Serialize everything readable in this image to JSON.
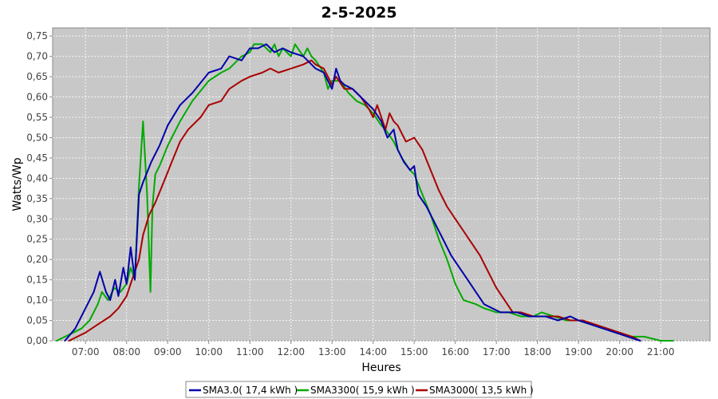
{
  "chart_data": {
    "type": "line",
    "title": "2-5-2025",
    "xlabel": "Heures",
    "ylabel": "Watts/Wp",
    "xlim": [
      6.2,
      22.2
    ],
    "ylim": [
      0,
      0.77
    ],
    "x_ticks": [
      {
        "x": 7,
        "label": "07:00"
      },
      {
        "x": 8,
        "label": "08:00"
      },
      {
        "x": 9,
        "label": "09:00"
      },
      {
        "x": 10,
        "label": "10:00"
      },
      {
        "x": 11,
        "label": "11:00"
      },
      {
        "x": 12,
        "label": "12:00"
      },
      {
        "x": 13,
        "label": "13:00"
      },
      {
        "x": 14,
        "label": "14:00"
      },
      {
        "x": 15,
        "label": "15:00"
      },
      {
        "x": 16,
        "label": "16:00"
      },
      {
        "x": 17,
        "label": "17:00"
      },
      {
        "x": 18,
        "label": "18:00"
      },
      {
        "x": 19,
        "label": "19:00"
      },
      {
        "x": 20,
        "label": "20:00"
      },
      {
        "x": 21,
        "label": "21:00"
      }
    ],
    "y_ticks": [
      {
        "y": 0.0,
        "label": "0,00"
      },
      {
        "y": 0.05,
        "label": "0,05"
      },
      {
        "y": 0.1,
        "label": "0,10"
      },
      {
        "y": 0.15,
        "label": "0,15"
      },
      {
        "y": 0.2,
        "label": "0,20"
      },
      {
        "y": 0.25,
        "label": "0,25"
      },
      {
        "y": 0.3,
        "label": "0,30"
      },
      {
        "y": 0.35,
        "label": "0,35"
      },
      {
        "y": 0.4,
        "label": "0,40"
      },
      {
        "y": 0.45,
        "label": "0,45"
      },
      {
        "y": 0.5,
        "label": "0,50"
      },
      {
        "y": 0.55,
        "label": "0,55"
      },
      {
        "y": 0.6,
        "label": "0,60"
      },
      {
        "y": 0.65,
        "label": "0,65"
      },
      {
        "y": 0.7,
        "label": "0,70"
      },
      {
        "y": 0.75,
        "label": "0,75"
      }
    ],
    "grid": true,
    "legend_position": "bottom",
    "colors": {
      "plot_background": "#c8c8c8",
      "grid": "#ffffff"
    },
    "series": [
      {
        "name": "SMA3.0( 17,4 kWh )",
        "color": "#0000aa",
        "x": [
          6.5,
          6.75,
          7.0,
          7.2,
          7.35,
          7.5,
          7.6,
          7.72,
          7.8,
          7.92,
          8.0,
          8.1,
          8.2,
          8.3,
          8.4,
          8.6,
          8.8,
          9.0,
          9.3,
          9.6,
          10.0,
          10.3,
          10.5,
          10.8,
          11.0,
          11.2,
          11.4,
          11.6,
          11.8,
          12.0,
          12.3,
          12.6,
          12.8,
          13.0,
          13.1,
          13.2,
          13.3,
          13.5,
          13.8,
          14.0,
          14.2,
          14.35,
          14.5,
          14.6,
          14.75,
          14.9,
          15.0,
          15.1,
          15.3,
          15.5,
          15.7,
          15.9,
          16.1,
          16.3,
          16.5,
          16.7,
          16.9,
          17.1,
          17.3,
          17.5,
          17.8,
          18.0,
          18.2,
          18.5,
          18.8,
          19.0,
          19.3,
          19.6,
          19.9,
          20.2,
          20.5
        ],
        "y": [
          0.0,
          0.03,
          0.08,
          0.12,
          0.17,
          0.12,
          0.1,
          0.15,
          0.11,
          0.18,
          0.14,
          0.23,
          0.15,
          0.36,
          0.39,
          0.44,
          0.48,
          0.53,
          0.58,
          0.61,
          0.66,
          0.67,
          0.7,
          0.69,
          0.72,
          0.72,
          0.73,
          0.71,
          0.72,
          0.71,
          0.7,
          0.67,
          0.66,
          0.62,
          0.67,
          0.64,
          0.63,
          0.62,
          0.59,
          0.57,
          0.54,
          0.5,
          0.52,
          0.47,
          0.44,
          0.42,
          0.43,
          0.36,
          0.33,
          0.29,
          0.25,
          0.21,
          0.18,
          0.15,
          0.12,
          0.09,
          0.08,
          0.07,
          0.07,
          0.07,
          0.06,
          0.06,
          0.06,
          0.05,
          0.06,
          0.05,
          0.04,
          0.03,
          0.02,
          0.01,
          0.0
        ]
      },
      {
        "name": "SMA3300( 15,9 kWh )",
        "color": "#00aa00",
        "x": [
          6.3,
          6.5,
          6.7,
          6.9,
          7.1,
          7.3,
          7.4,
          7.55,
          7.7,
          7.85,
          8.0,
          8.1,
          8.2,
          8.3,
          8.4,
          8.5,
          8.58,
          8.63,
          8.7,
          8.8,
          9.0,
          9.3,
          9.6,
          10.0,
          10.3,
          10.5,
          10.8,
          11.0,
          11.1,
          11.3,
          11.5,
          11.6,
          11.7,
          11.8,
          12.0,
          12.1,
          12.3,
          12.4,
          12.5,
          12.6,
          12.8,
          12.9,
          13.0,
          13.2,
          13.4,
          13.6,
          13.8,
          14.0,
          14.2,
          14.3,
          14.5,
          14.7,
          14.9,
          15.0,
          15.2,
          15.4,
          15.6,
          15.8,
          16.0,
          16.2,
          16.5,
          16.7,
          17.0,
          17.3,
          17.6,
          17.9,
          18.1,
          18.4,
          18.7,
          19.0,
          19.3,
          19.6,
          20.0,
          20.3,
          20.6,
          21.0,
          21.3
        ],
        "y": [
          0.0,
          0.01,
          0.02,
          0.03,
          0.05,
          0.09,
          0.12,
          0.1,
          0.13,
          0.12,
          0.14,
          0.18,
          0.15,
          0.38,
          0.54,
          0.36,
          0.12,
          0.33,
          0.41,
          0.43,
          0.48,
          0.54,
          0.59,
          0.64,
          0.66,
          0.67,
          0.7,
          0.71,
          0.73,
          0.73,
          0.71,
          0.73,
          0.7,
          0.72,
          0.7,
          0.73,
          0.7,
          0.72,
          0.7,
          0.69,
          0.66,
          0.62,
          0.64,
          0.64,
          0.61,
          0.59,
          0.58,
          0.56,
          0.53,
          0.52,
          0.49,
          0.45,
          0.42,
          0.41,
          0.36,
          0.31,
          0.25,
          0.2,
          0.14,
          0.1,
          0.09,
          0.08,
          0.07,
          0.07,
          0.06,
          0.06,
          0.07,
          0.06,
          0.05,
          0.05,
          0.04,
          0.03,
          0.02,
          0.01,
          0.01,
          0.0,
          0.0
        ]
      },
      {
        "name": "SMA3000( 13,5 kWh )",
        "color": "#aa0000",
        "x": [
          6.6,
          6.8,
          7.0,
          7.3,
          7.6,
          7.8,
          8.0,
          8.1,
          8.2,
          8.3,
          8.4,
          8.55,
          8.7,
          8.9,
          9.1,
          9.3,
          9.5,
          9.8,
          10.0,
          10.3,
          10.5,
          10.8,
          11.0,
          11.3,
          11.5,
          11.7,
          12.0,
          12.3,
          12.5,
          12.6,
          12.8,
          13.0,
          13.1,
          13.3,
          13.5,
          13.7,
          13.9,
          14.0,
          14.1,
          14.2,
          14.3,
          14.4,
          14.5,
          14.6,
          14.8,
          15.0,
          15.2,
          15.4,
          15.6,
          15.8,
          16.0,
          16.2,
          16.4,
          16.6,
          16.8,
          17.0,
          17.2,
          17.4,
          17.6,
          17.9,
          18.2,
          18.5,
          18.8,
          19.1,
          19.4,
          19.7,
          20.0,
          20.3,
          20.5
        ],
        "y": [
          0.0,
          0.01,
          0.02,
          0.04,
          0.06,
          0.08,
          0.11,
          0.14,
          0.17,
          0.2,
          0.26,
          0.31,
          0.34,
          0.39,
          0.44,
          0.49,
          0.52,
          0.55,
          0.58,
          0.59,
          0.62,
          0.64,
          0.65,
          0.66,
          0.67,
          0.66,
          0.67,
          0.68,
          0.69,
          0.68,
          0.67,
          0.63,
          0.65,
          0.62,
          0.62,
          0.6,
          0.57,
          0.55,
          0.58,
          0.55,
          0.52,
          0.56,
          0.54,
          0.53,
          0.49,
          0.5,
          0.47,
          0.42,
          0.37,
          0.33,
          0.3,
          0.27,
          0.24,
          0.21,
          0.17,
          0.13,
          0.1,
          0.07,
          0.07,
          0.06,
          0.06,
          0.06,
          0.05,
          0.05,
          0.04,
          0.03,
          0.02,
          0.01,
          0.0
        ]
      }
    ]
  }
}
